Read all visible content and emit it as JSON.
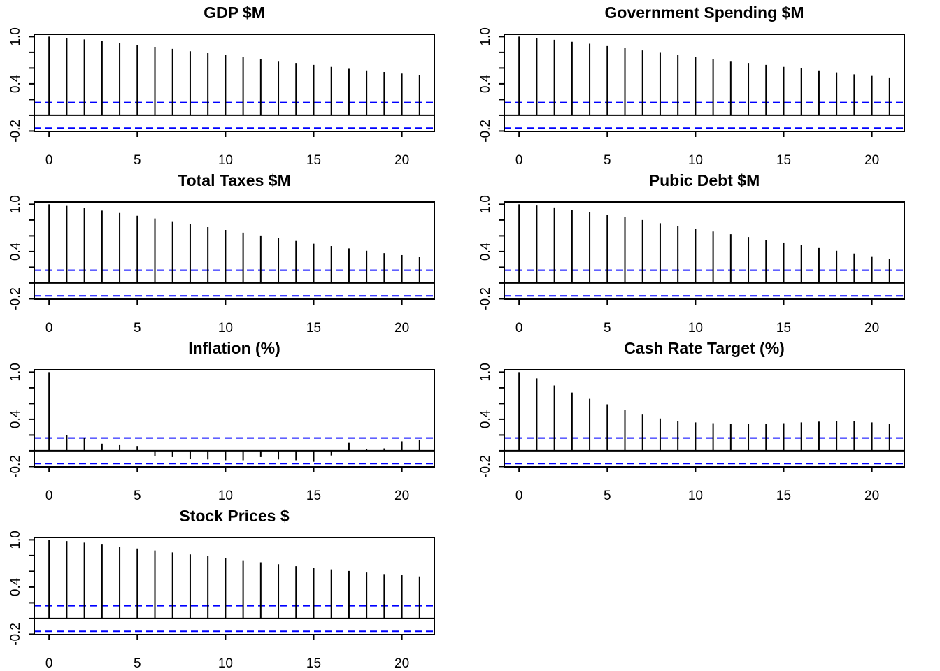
{
  "chart_data": [
    {
      "type": "bar",
      "title": "GDP $M",
      "xlabel": "",
      "ylabel": "",
      "x": [
        0,
        1,
        2,
        3,
        4,
        5,
        6,
        7,
        8,
        9,
        10,
        11,
        12,
        13,
        14,
        15,
        16,
        17,
        18,
        19,
        20,
        21
      ],
      "values": [
        1.0,
        0.985,
        0.965,
        0.945,
        0.92,
        0.895,
        0.87,
        0.845,
        0.815,
        0.79,
        0.765,
        0.74,
        0.715,
        0.69,
        0.665,
        0.64,
        0.615,
        0.59,
        0.57,
        0.55,
        0.53,
        0.51
      ],
      "conf_band": [
        0.163,
        -0.163
      ],
      "xlim": [
        -0.84,
        21.84
      ],
      "ylim": [
        -0.205,
        1.03
      ],
      "xticks": [
        "0",
        "5",
        "10",
        "15",
        "20"
      ],
      "yticks": [
        "-0.2",
        "0.4",
        "1.0"
      ],
      "grid": false,
      "legend": "none",
      "colors": {
        "bars": "#000000",
        "conf_band": "#0000ff"
      }
    },
    {
      "type": "bar",
      "title": "Government Spending $M",
      "xlabel": "",
      "ylabel": "",
      "x": [
        0,
        1,
        2,
        3,
        4,
        5,
        6,
        7,
        8,
        9,
        10,
        11,
        12,
        13,
        14,
        15,
        16,
        17,
        18,
        19,
        20,
        21
      ],
      "values": [
        1.0,
        0.985,
        0.96,
        0.935,
        0.91,
        0.88,
        0.855,
        0.825,
        0.795,
        0.77,
        0.745,
        0.715,
        0.69,
        0.665,
        0.64,
        0.615,
        0.595,
        0.57,
        0.545,
        0.52,
        0.5,
        0.48
      ],
      "conf_band": [
        0.163,
        -0.163
      ],
      "xlim": [
        -0.84,
        21.84
      ],
      "ylim": [
        -0.205,
        1.03
      ],
      "xticks": [
        "0",
        "5",
        "10",
        "15",
        "20"
      ],
      "yticks": [
        "-0.2",
        "0.4",
        "1.0"
      ],
      "grid": false,
      "legend": "none",
      "colors": {
        "bars": "#000000",
        "conf_band": "#0000ff"
      }
    },
    {
      "type": "bar",
      "title": "Total Taxes $M",
      "xlabel": "",
      "ylabel": "",
      "x": [
        0,
        1,
        2,
        3,
        4,
        5,
        6,
        7,
        8,
        9,
        10,
        11,
        12,
        13,
        14,
        15,
        16,
        17,
        18,
        19,
        20,
        21
      ],
      "values": [
        1.0,
        0.98,
        0.95,
        0.92,
        0.89,
        0.855,
        0.82,
        0.785,
        0.75,
        0.71,
        0.675,
        0.64,
        0.605,
        0.57,
        0.535,
        0.5,
        0.47,
        0.44,
        0.41,
        0.38,
        0.355,
        0.33
      ],
      "conf_band": [
        0.163,
        -0.163
      ],
      "xlim": [
        -0.84,
        21.84
      ],
      "ylim": [
        -0.205,
        1.03
      ],
      "xticks": [
        "0",
        "5",
        "10",
        "15",
        "20"
      ],
      "yticks": [
        "-0.2",
        "0.4",
        "1.0"
      ],
      "grid": false,
      "legend": "none",
      "colors": {
        "bars": "#000000",
        "conf_band": "#0000ff"
      }
    },
    {
      "type": "bar",
      "title": "Pubic Debt $M",
      "xlabel": "",
      "ylabel": "",
      "x": [
        0,
        1,
        2,
        3,
        4,
        5,
        6,
        7,
        8,
        9,
        10,
        11,
        12,
        13,
        14,
        15,
        16,
        17,
        18,
        19,
        20,
        21
      ],
      "values": [
        1.0,
        0.985,
        0.96,
        0.93,
        0.9,
        0.87,
        0.835,
        0.8,
        0.76,
        0.725,
        0.69,
        0.655,
        0.62,
        0.585,
        0.55,
        0.515,
        0.48,
        0.445,
        0.41,
        0.375,
        0.34,
        0.305
      ],
      "conf_band": [
        0.163,
        -0.163
      ],
      "xlim": [
        -0.84,
        21.84
      ],
      "ylim": [
        -0.205,
        1.03
      ],
      "xticks": [
        "0",
        "5",
        "10",
        "15",
        "20"
      ],
      "yticks": [
        "-0.2",
        "0.4",
        "1.0"
      ],
      "grid": false,
      "legend": "none",
      "colors": {
        "bars": "#000000",
        "conf_band": "#0000ff"
      }
    },
    {
      "type": "bar",
      "title": "Inflation (%)",
      "xlabel": "",
      "ylabel": "",
      "x": [
        0,
        1,
        2,
        3,
        4,
        5,
        6,
        7,
        8,
        9,
        10,
        11,
        12,
        13,
        14,
        15,
        16,
        17,
        18,
        19,
        20,
        21
      ],
      "values": [
        1.0,
        0.2,
        0.16,
        0.09,
        0.08,
        0.06,
        -0.07,
        -0.08,
        -0.1,
        -0.11,
        -0.12,
        -0.12,
        -0.08,
        -0.11,
        -0.12,
        -0.14,
        -0.06,
        0.1,
        0.02,
        0.03,
        0.12,
        0.14
      ],
      "conf_band": [
        0.163,
        -0.163
      ],
      "xlim": [
        -0.84,
        21.84
      ],
      "ylim": [
        -0.205,
        1.03
      ],
      "xticks": [
        "0",
        "5",
        "10",
        "15",
        "20"
      ],
      "yticks": [
        "-0.2",
        "0.4",
        "1.0"
      ],
      "grid": false,
      "legend": "none",
      "colors": {
        "bars": "#000000",
        "conf_band": "#0000ff"
      }
    },
    {
      "type": "bar",
      "title": "Cash Rate Target (%)",
      "xlabel": "",
      "ylabel": "",
      "x": [
        0,
        1,
        2,
        3,
        4,
        5,
        6,
        7,
        8,
        9,
        10,
        11,
        12,
        13,
        14,
        15,
        16,
        17,
        18,
        19,
        20,
        21
      ],
      "values": [
        1.0,
        0.92,
        0.83,
        0.74,
        0.66,
        0.59,
        0.52,
        0.46,
        0.41,
        0.38,
        0.36,
        0.35,
        0.34,
        0.34,
        0.34,
        0.35,
        0.36,
        0.37,
        0.38,
        0.38,
        0.36,
        0.34
      ],
      "conf_band": [
        0.163,
        -0.163
      ],
      "xlim": [
        -0.84,
        21.84
      ],
      "ylim": [
        -0.205,
        1.03
      ],
      "xticks": [
        "0",
        "5",
        "10",
        "15",
        "20"
      ],
      "yticks": [
        "-0.2",
        "0.4",
        "1.0"
      ],
      "grid": false,
      "legend": "none",
      "colors": {
        "bars": "#000000",
        "conf_band": "#0000ff"
      }
    },
    {
      "type": "bar",
      "title": "Stock Prices $",
      "xlabel": "",
      "ylabel": "",
      "x": [
        0,
        1,
        2,
        3,
        4,
        5,
        6,
        7,
        8,
        9,
        10,
        11,
        12,
        13,
        14,
        15,
        16,
        17,
        18,
        19,
        20,
        21
      ],
      "values": [
        1.0,
        0.985,
        0.965,
        0.94,
        0.915,
        0.89,
        0.865,
        0.84,
        0.815,
        0.79,
        0.765,
        0.74,
        0.715,
        0.69,
        0.665,
        0.645,
        0.625,
        0.605,
        0.585,
        0.565,
        0.55,
        0.535
      ],
      "conf_band": [
        0.163,
        -0.163
      ],
      "xlim": [
        -0.84,
        21.84
      ],
      "ylim": [
        -0.205,
        1.03
      ],
      "xticks": [
        "0",
        "5",
        "10",
        "15",
        "20"
      ],
      "yticks": [
        "-0.2",
        "0.4",
        "1.0"
      ],
      "grid": false,
      "legend": "none",
      "colors": {
        "bars": "#000000",
        "conf_band": "#0000ff"
      }
    }
  ]
}
